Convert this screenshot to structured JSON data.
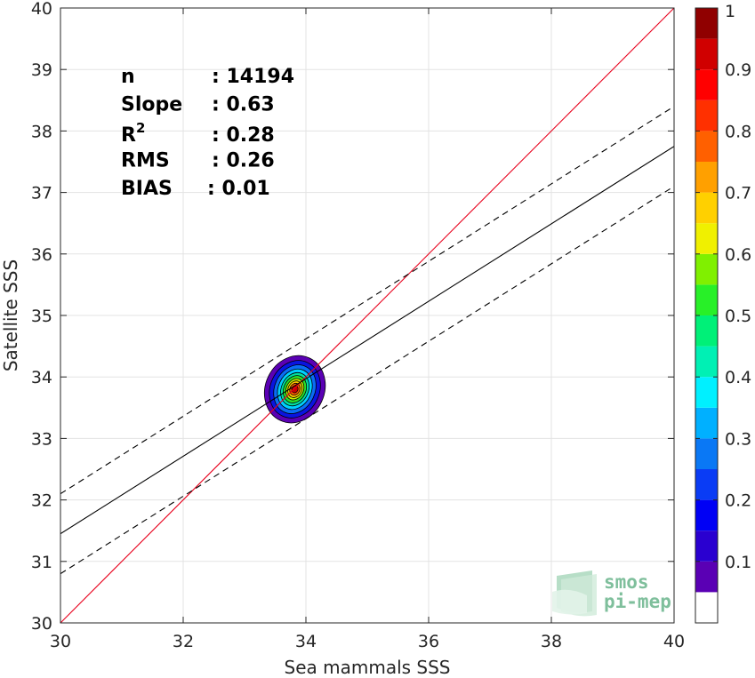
{
  "chart_data": {
    "type": "scatter",
    "subtype": "density-contour",
    "xlabel": "Sea mammals SSS",
    "ylabel": "Satellite SSS",
    "xlim": [
      30,
      40
    ],
    "ylim": [
      30,
      40
    ],
    "x_ticks": [
      "30",
      "32",
      "34",
      "36",
      "38",
      "40"
    ],
    "y_ticks": [
      "30",
      "31",
      "32",
      "33",
      "34",
      "35",
      "36",
      "37",
      "38",
      "39",
      "40"
    ],
    "grid": true,
    "stats": [
      {
        "label": "n",
        "value": ": 14194"
      },
      {
        "label": "Slope",
        "value": ": 0.63"
      },
      {
        "label": "R",
        "sup": "2",
        "value": ": 0.28"
      },
      {
        "label": "RMS",
        "value": ": 0.26"
      },
      {
        "label": "BIAS",
        "value": ": 0.01"
      }
    ],
    "lines": [
      {
        "role": "identity",
        "color": "#e8001c",
        "style": "solid",
        "points": [
          [
            30,
            30
          ],
          [
            40,
            40
          ]
        ]
      },
      {
        "role": "regression",
        "color": "#000000",
        "style": "solid",
        "points": [
          [
            30,
            31.45
          ],
          [
            40,
            37.75
          ]
        ]
      },
      {
        "role": "upper-bound",
        "color": "#000000",
        "style": "dashed",
        "points": [
          [
            30,
            32.1
          ],
          [
            40,
            38.4
          ]
        ]
      },
      {
        "role": "lower-bound",
        "color": "#000000",
        "style": "dashed",
        "points": [
          [
            30,
            30.8
          ],
          [
            40,
            37.1
          ]
        ]
      }
    ],
    "density_center": [
      33.82,
      33.8
    ],
    "density_levels": [
      {
        "level": 0.05,
        "rx": 0.48,
        "ry": 0.56,
        "color": "#5a00b4"
      },
      {
        "level": 0.15,
        "rx": 0.4,
        "ry": 0.48,
        "color": "#0a14e0"
      },
      {
        "level": 0.25,
        "rx": 0.33,
        "ry": 0.41,
        "color": "#0a6cf5"
      },
      {
        "level": 0.35,
        "rx": 0.27,
        "ry": 0.34,
        "color": "#00cfff"
      },
      {
        "level": 0.45,
        "rx": 0.22,
        "ry": 0.28,
        "color": "#00e0a0"
      },
      {
        "level": 0.55,
        "rx": 0.18,
        "ry": 0.23,
        "color": "#28e028"
      },
      {
        "level": 0.65,
        "rx": 0.14,
        "ry": 0.18,
        "color": "#c8f000"
      },
      {
        "level": 0.75,
        "rx": 0.11,
        "ry": 0.14,
        "color": "#ffc800"
      },
      {
        "level": 0.85,
        "rx": 0.08,
        "ry": 0.1,
        "color": "#ff5a00"
      },
      {
        "level": 0.95,
        "rx": 0.05,
        "ry": 0.06,
        "color": "#c80000"
      }
    ],
    "colorbar": {
      "range": [
        0,
        1
      ],
      "tick_labels": [
        "0.1",
        "0.2",
        "0.3",
        "0.4",
        "0.5",
        "0.6",
        "0.7",
        "0.8",
        "0.9",
        "1"
      ],
      "tick_values": [
        0.1,
        0.2,
        0.3,
        0.4,
        0.5,
        0.6,
        0.7,
        0.8,
        0.9,
        1.0
      ],
      "colors": [
        "#ffffff",
        "#5a00b4",
        "#2a00d0",
        "#0000f5",
        "#0a3cf5",
        "#0a78f5",
        "#00b0ff",
        "#00f0ff",
        "#00f0b4",
        "#00f078",
        "#28f028",
        "#80f000",
        "#f0f000",
        "#ffd000",
        "#ffa000",
        "#ff6000",
        "#ff3000",
        "#ff0000",
        "#d00000",
        "#900000"
      ]
    }
  },
  "logo": {
    "line1": "smos",
    "line2": "pi-mep"
  }
}
